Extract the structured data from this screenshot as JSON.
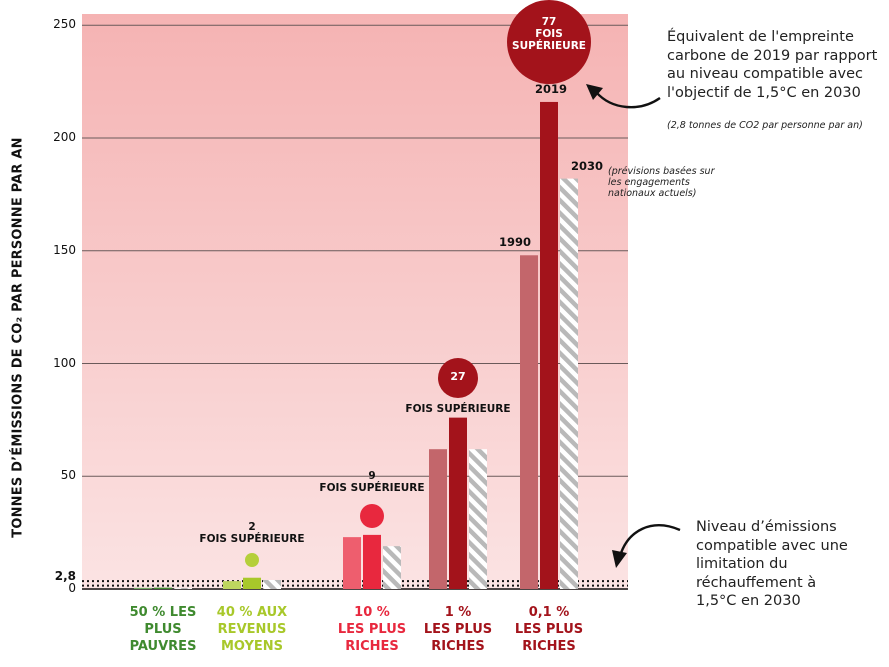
{
  "chart_data": {
    "type": "bar",
    "ylabel": "TONNES D’ÉMISSIONS DE CO₂ PAR PERSONNE PAR AN",
    "ylim": [
      0,
      255
    ],
    "yticks": [
      "0",
      "2,8",
      "50",
      "100",
      "150",
      "200",
      "250"
    ],
    "ytick_values": [
      0,
      2.8,
      50,
      100,
      150,
      200,
      250
    ],
    "categories": [
      "50 % LES PLUS PAUVRES",
      "40 % AUX REVENUS MOYENS",
      "10 % LES PLUS RICHES",
      "1 % LES PLUS RICHES",
      "0,1 % LES PLUS RICHES"
    ],
    "category_colors": [
      "#3f8a2f",
      "#a8c82a",
      "#e8283e",
      "#a3131b",
      "#a3131b"
    ],
    "series": [
      {
        "name": "1990",
        "values": [
          0.5,
          3.5,
          23,
          62,
          148
        ]
      },
      {
        "name": "2019",
        "values": [
          0.6,
          5,
          24,
          76,
          216
        ]
      },
      {
        "name": "2030",
        "values": [
          0.4,
          4,
          19,
          62,
          182
        ]
      }
    ],
    "reference_line": {
      "value": 2.8,
      "label": "2,8"
    },
    "multipliers": [
      {
        "category": "40 % AUX REVENUS MOYENS",
        "number": "2",
        "text": "FOIS SUPÉRIEURE",
        "color": "#b5cf3a"
      },
      {
        "category": "10 % LES PLUS RICHES",
        "number": "9",
        "text": "FOIS SUPÉRIEURE",
        "color": "#e8283e"
      },
      {
        "category": "1 % LES PLUS RICHES",
        "number": "27",
        "text": "FOIS SUPÉRIEURE",
        "color": "#a3131b"
      },
      {
        "category": "0,1 % LES PLUS RICHES",
        "number": "77",
        "text": "FOIS SUPÉRIEURE",
        "color": "#a3131b"
      }
    ],
    "year_labels": [
      "1990",
      "2019",
      "2030"
    ],
    "annotations": {
      "top_right": "Équivalent de l'empreinte\ncarbone de 2019 par rapport\nau niveau compatible avec\nl'objectif de 1,5°C en 2030",
      "top_right_small": "(2,8 tonnes de CO2 par personne par an)",
      "forecast_note": "(prévisions basées sur\nles engagements\nnationaux actuels)",
      "bottom_right": "Niveau d’émissions\ncompatible avec une\nlimitation du\nréchauffement à\n1,5°C en 2030"
    },
    "background_color": "#f6b8b8",
    "grid": true
  }
}
